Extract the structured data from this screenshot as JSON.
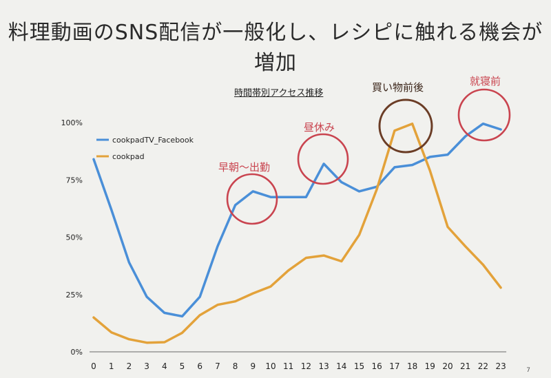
{
  "slide": {
    "title": "料理動画のSNS配信が一般化し、レシピに触れる機会が増加",
    "page_number": "7"
  },
  "chart_data": {
    "type": "line",
    "title": "時間帯別アクセス推移",
    "categories": [
      "0",
      "1",
      "2",
      "3",
      "4",
      "5",
      "6",
      "7",
      "8",
      "9",
      "10",
      "11",
      "12",
      "13",
      "14",
      "15",
      "16",
      "17",
      "18",
      "19",
      "20",
      "21",
      "22",
      "23"
    ],
    "ylim": [
      0,
      100
    ],
    "yticks": [
      "0%",
      "25%",
      "50%",
      "75%",
      "100%"
    ],
    "series": [
      {
        "name": "cookpadTV_Facebook",
        "color": "#4a8fd8",
        "values": [
          84,
          62,
          39,
          24,
          17,
          15.5,
          24,
          46,
          64,
          70,
          67.5,
          67.5,
          67.5,
          82,
          74,
          70,
          72,
          80.5,
          81.5,
          85,
          86,
          94,
          99.5,
          97
        ]
      },
      {
        "name": "cookpad",
        "color": "#e3a23a",
        "values": [
          15,
          8.5,
          5.5,
          4,
          4.2,
          8.3,
          16,
          20.5,
          22,
          25.5,
          28.5,
          35.5,
          41,
          42,
          39.5,
          51,
          71,
          96.5,
          99.5,
          79,
          54.5,
          46,
          38,
          28
        ]
      }
    ],
    "annotations": [
      {
        "label": "早朝〜出勤",
        "color": "#c9444f"
      },
      {
        "label": "昼休み",
        "color": "#c9444f"
      },
      {
        "label": "買い物前後",
        "color": "#6b3d26"
      },
      {
        "label": "就寝前",
        "color": "#c9444f"
      }
    ]
  }
}
